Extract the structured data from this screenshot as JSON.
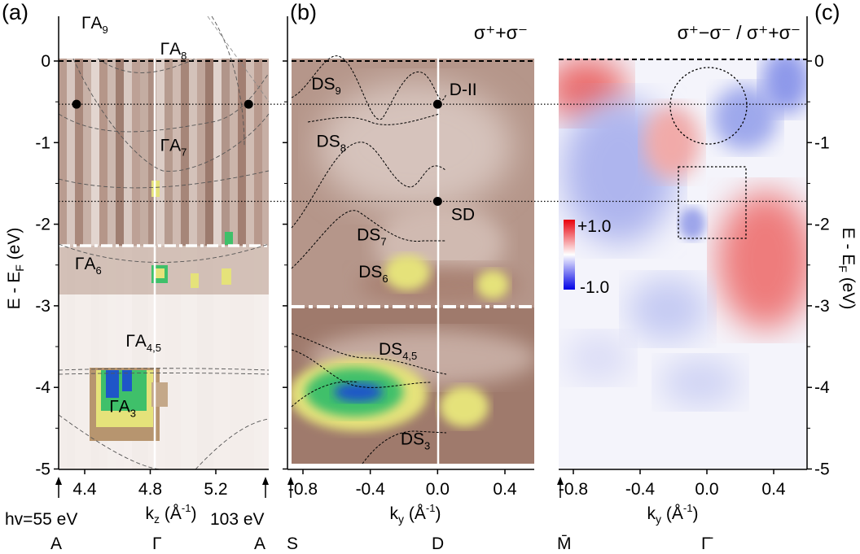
{
  "chart_data": [
    {
      "panel": "(a)",
      "type": "heatmap",
      "xlabel": "k_z (Å^-1)",
      "ylabel": "E - E_F (eV)",
      "xlim": [
        4.3,
        5.55
      ],
      "ylim": [
        -5,
        0.15
      ],
      "x_ticks": [
        "4.4",
        "4.8",
        "5.2"
      ],
      "x_tick_values": [
        4.4,
        4.8,
        5.2
      ],
      "y_ticks": [
        "0",
        "-1",
        "-2",
        "-3",
        "-4",
        "-5"
      ],
      "y_tick_values": [
        0,
        -1,
        -2,
        -3,
        -4,
        -5
      ],
      "band_labels": [
        {
          "label": "ΓA9",
          "x": 4.38,
          "y": 0.4
        },
        {
          "label": "ΓA8",
          "x": 4.86,
          "y": 0.08
        },
        {
          "label": "ΓA7",
          "x": 4.86,
          "y": -1.1
        },
        {
          "label": "ΓA6",
          "x": 4.34,
          "y": -2.55
        },
        {
          "label": "ΓA4,5",
          "x": 4.65,
          "y": -3.5
        },
        {
          "label": "ΓA3",
          "x": 4.55,
          "y": -4.3
        }
      ],
      "markers": [
        {
          "label": "D-II",
          "x": 4.35,
          "y": -0.53
        },
        {
          "label": "",
          "x": 5.4,
          "y": -0.53
        }
      ],
      "bottom_labels": {
        "photon_start": "hv=55 eV",
        "photon_end": "103 eV",
        "points": [
          "A",
          "Γ",
          "A"
        ]
      }
    },
    {
      "panel": "(b)",
      "type": "heatmap",
      "title": "σ⁺+σ⁻",
      "xlabel": "k_y (Å^-1)",
      "xlim": [
        -0.92,
        0.62
      ],
      "ylim": [
        -5,
        0.15
      ],
      "x_ticks": [
        "-0.8",
        "-0.4",
        "0.0",
        "0.4"
      ],
      "x_tick_values": [
        -0.8,
        -0.4,
        0.0,
        0.4
      ],
      "band_labels": [
        {
          "label": "DS9",
          "x": -0.75,
          "y": -0.35
        },
        {
          "label": "DS8",
          "x": -0.72,
          "y": -1.05
        },
        {
          "label": "DS7",
          "x": -0.48,
          "y": -2.2
        },
        {
          "label": "DS6",
          "x": -0.47,
          "y": -2.65
        },
        {
          "label": "DS4,5",
          "x": -0.35,
          "y": -3.6
        },
        {
          "label": "DS3",
          "x": -0.22,
          "y": -4.7
        },
        {
          "label": "D-II",
          "x": 0.07,
          "y": -0.42
        },
        {
          "label": "SD",
          "x": 0.08,
          "y": -1.95
        }
      ],
      "markers": [
        {
          "label": "D-II",
          "x": 0.0,
          "y": -0.53
        },
        {
          "label": "SD",
          "x": 0.0,
          "y": -1.72
        }
      ],
      "bottom_labels": {
        "points": [
          "S",
          "D"
        ]
      }
    },
    {
      "panel": "(c)",
      "type": "heatmap",
      "title": "σ⁺−σ⁻ / σ⁺+σ⁻",
      "xlabel": "k_y (Å^-1)",
      "ylabel": "E - E_F (eV)",
      "xlim": [
        -0.92,
        0.62
      ],
      "ylim": [
        -5,
        0.15
      ],
      "x_ticks": [
        "-0.8",
        "-0.4",
        "0.0",
        "0.4"
      ],
      "x_tick_values": [
        -0.8,
        -0.4,
        0.0,
        0.4
      ],
      "colorbar": {
        "max_label": "+1.0",
        "min_label": "-1.0",
        "max_color": "#e8000b",
        "mid_color": "#ffffff",
        "min_color": "#0000e6"
      },
      "bottom_labels": {
        "points": [
          "M̄",
          "Γ̄"
        ]
      }
    }
  ],
  "reference_lines_eV": [
    -0.53,
    -1.72
  ],
  "colors": {
    "brown": "#a8806f",
    "yellow": "#e5e27a",
    "green": "#3fc06a",
    "blue": "#1f56c8"
  }
}
